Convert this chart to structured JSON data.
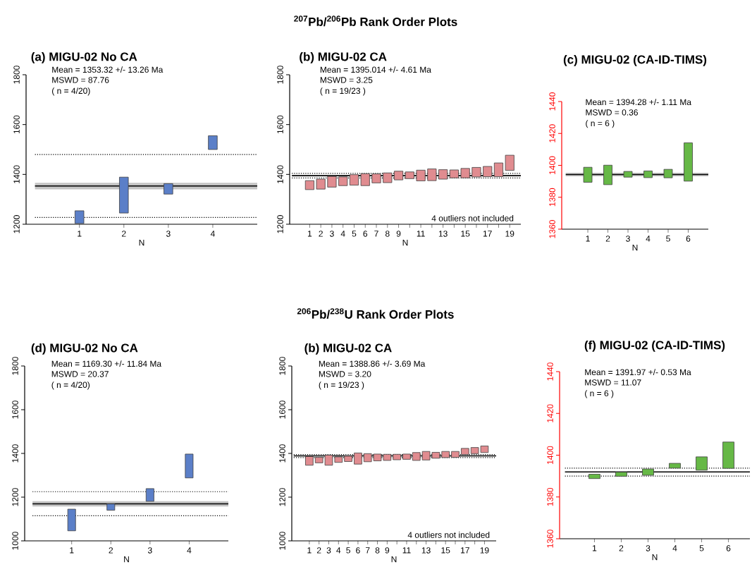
{
  "chart_data": [
    {
      "type": "bar",
      "title": "(a)  MIGU-02 No CA",
      "xlabel": "N",
      "annotations": [
        "Mean = 1353.32 +/- 13.26 Ma",
        "MSWD = 87.76",
        "( n = 4/20)"
      ],
      "x": [
        1,
        2,
        3,
        4
      ],
      "xlim": [
        -0.2,
        5
      ],
      "xticks": [
        1,
        2,
        3,
        4
      ],
      "ylim": [
        1200,
        1800
      ],
      "yticks": [
        1200,
        1400,
        1600,
        1800
      ],
      "base": [
        1203,
        1245,
        1321,
        1500
      ],
      "values": [
        51,
        144,
        42,
        55
      ],
      "color": "#5b7fc8",
      "bands": [
        {
          "axis": "y",
          "from": 1340.06,
          "to": 1366.58,
          "color": "#c4c4c4"
        }
      ],
      "ref_lines": [
        {
          "axis": "y",
          "value": 1353.32,
          "line_style": "solid",
          "color": "#000000"
        },
        {
          "axis": "y",
          "value": 1480,
          "line_style": "dotted",
          "color": "#000000"
        },
        {
          "axis": "y",
          "value": 1227,
          "line_style": "dotted",
          "color": "#000000"
        }
      ]
    },
    {
      "type": "bar",
      "title": "(b)  MIGU-02 CA",
      "subtitle": "$^{207}$Pb/$^{206}$Pb Rank Order Plots",
      "xlabel": "N",
      "annotations": [
        "Mean = 1395.014 +/- 4.61 Ma",
        "MSWD = 3.25",
        "( n = 19/23 )",
        "4 outliers not included"
      ],
      "x": [
        1,
        2,
        3,
        4,
        5,
        6,
        7,
        8,
        9,
        10,
        11,
        12,
        13,
        14,
        15,
        16,
        17,
        18,
        19
      ],
      "xlim": [
        -0.8,
        20
      ],
      "xticks": [
        1,
        2,
        3,
        4,
        5,
        6,
        7,
        8,
        9,
        {
          "value": 10,
          "label": null
        },
        11,
        {
          "value": 12,
          "label": null
        },
        13,
        {
          "value": 14,
          "label": null
        },
        15,
        {
          "value": 16,
          "label": null
        },
        17,
        {
          "value": 18,
          "label": null
        },
        19
      ],
      "ylim": [
        1200,
        1800
      ],
      "yticks": [
        1200,
        1400,
        1600,
        1800
      ],
      "base": [
        1339,
        1341,
        1349,
        1355,
        1357,
        1355,
        1366,
        1367,
        1378,
        1383,
        1374,
        1375,
        1381,
        1386,
        1386,
        1390,
        1391,
        1391,
        1416
      ],
      "values": [
        36,
        40,
        43,
        35,
        42,
        48,
        36,
        39,
        35,
        27,
        43,
        47,
        38,
        32,
        38,
        38,
        41,
        55,
        61
      ],
      "color": "#e08c90",
      "ref_lines": [
        {
          "axis": "y",
          "value": 1395.014,
          "line_style": "solid",
          "color": "#000000"
        },
        {
          "axis": "y",
          "value": 1404,
          "line_style": "dotted",
          "color": "#000000"
        },
        {
          "axis": "y",
          "value": 1386,
          "line_style": "dotted",
          "color": "#000000"
        }
      ]
    },
    {
      "type": "bar",
      "title": "(c) MIGU-02 (CA-ID-TIMS)",
      "xlabel": "N",
      "annotations": [
        "Mean = 1394.28 +/- 1.11 Ma",
        "MSWD = 0.36",
        "( n = 6 )"
      ],
      "x": [
        1,
        2,
        3,
        4,
        5,
        6
      ],
      "xlim": [
        -0.3,
        7
      ],
      "xticks": [
        1,
        2,
        3,
        4,
        5,
        6
      ],
      "ylim": [
        1360,
        1440
      ],
      "yticks": [
        1360,
        1380,
        1400,
        1420,
        1440
      ],
      "base": [
        1389.4,
        1387.9,
        1392.6,
        1392.3,
        1392.2,
        1390.1
      ],
      "values": [
        9.4,
        12.2,
        3.6,
        4.2,
        5.3,
        24.0
      ],
      "color": "#66b846",
      "bands": [
        {
          "axis": "y",
          "from": 1393.17,
          "to": 1395.39,
          "color": "#c4c4c4"
        }
      ],
      "ref_lines": [
        {
          "axis": "y",
          "value": 1394.28,
          "line_style": "solid",
          "color": "#000000"
        }
      ]
    },
    {
      "type": "bar",
      "title": "(d)  MIGU-02 No CA",
      "xlabel": "N",
      "annotations": [
        "Mean = 1169.30 +/- 11.84 Ma",
        "MSWD = 20.37",
        "( n = 4/20)"
      ],
      "x": [
        1,
        2,
        3,
        4
      ],
      "xlim": [
        -0.2,
        5
      ],
      "xticks": [
        1,
        2,
        3,
        4
      ],
      "ylim": [
        1000,
        1800
      ],
      "yticks": [
        1000,
        1200,
        1400,
        1600,
        1800
      ],
      "base": [
        1046,
        1140,
        1181,
        1288
      ],
      "values": [
        99,
        29,
        58,
        109
      ],
      "color": "#5b7fc8",
      "bands": [
        {
          "axis": "y",
          "from": 1157.46,
          "to": 1181.14,
          "color": "#c4c4c4"
        }
      ],
      "ref_lines": [
        {
          "axis": "y",
          "value": 1169.3,
          "line_style": "solid",
          "color": "#000000"
        },
        {
          "axis": "y",
          "value": 1225,
          "line_style": "dotted",
          "color": "#000000"
        },
        {
          "axis": "y",
          "value": 1115,
          "line_style": "dotted",
          "color": "#000000"
        }
      ]
    },
    {
      "type": "bar",
      "title": "(b)  MIGU-02 CA",
      "subtitle": "$^{206}$Pb/$^{238}$U  Rank Order Plots",
      "xlabel": "N",
      "annotations": [
        "Mean = 1388.86 +/- 3.69 Ma",
        "MSWD = 3.20",
        "( n = 19/23 )",
        "4 outliers not included"
      ],
      "x": [
        1,
        2,
        3,
        4,
        5,
        6,
        7,
        8,
        9,
        10,
        11,
        12,
        13,
        14,
        15,
        16,
        17,
        18,
        19
      ],
      "xlim": [
        -0.8,
        20.2
      ],
      "xticks": [
        1,
        2,
        3,
        4,
        5,
        6,
        7,
        8,
        9,
        {
          "value": 10,
          "label": null
        },
        11,
        {
          "value": 12,
          "label": null
        },
        13,
        {
          "value": 14,
          "label": null
        },
        15,
        {
          "value": 16,
          "label": null
        },
        17,
        {
          "value": 18,
          "label": null
        },
        19
      ],
      "ylim": [
        1000,
        1800
      ],
      "yticks": [
        1000,
        1200,
        1400,
        1600,
        1800
      ],
      "base": [
        1346,
        1357,
        1346,
        1359,
        1363,
        1351,
        1362,
        1366,
        1368,
        1371,
        1373,
        1368,
        1370,
        1378,
        1381,
        1382,
        1395,
        1399,
        1404
      ],
      "values": [
        40,
        25,
        46,
        25,
        25,
        51,
        37,
        31,
        28,
        25,
        24,
        36,
        39,
        27,
        28,
        27,
        28,
        28,
        30
      ],
      "color": "#e08c90",
      "ref_lines": [
        {
          "axis": "y",
          "value": 1388.86,
          "line_style": "solid",
          "color": "#000000"
        },
        {
          "axis": "y",
          "value": 1395,
          "line_style": "dotted",
          "color": "#000000"
        },
        {
          "axis": "y",
          "value": 1381,
          "line_style": "dotted",
          "color": "#000000"
        }
      ]
    },
    {
      "type": "bar",
      "title": "(f)  MIGU-02 (CA-ID-TIMS)",
      "xlabel": "N",
      "annotations": [
        "Mean = 1391.97 +/- 0.53 Ma",
        "MSWD = 11.07",
        "( n = 6 )"
      ],
      "x": [
        1,
        2,
        3,
        4,
        5,
        6
      ],
      "xlim": [
        -0.3,
        6.8
      ],
      "xticks": [
        1,
        2,
        3,
        4,
        5,
        6
      ],
      "ylim": [
        1360,
        1440
      ],
      "yticks": [
        1360,
        1380,
        1400,
        1420,
        1440
      ],
      "base": [
        1388.8,
        1389.9,
        1390.4,
        1393.8,
        1392.8,
        1393.7
      ],
      "values": [
        2.1,
        2.0,
        3.0,
        2.3,
        6.4,
        12.6
      ],
      "color": "#66b846",
      "ref_lines": [
        {
          "axis": "y",
          "value": 1391.97,
          "line_style": "solid",
          "color": "#000000"
        },
        {
          "axis": "y",
          "value": 1393.8,
          "line_style": "dotted",
          "color": "#000000"
        },
        {
          "axis": "y",
          "value": 1390.0,
          "line_style": "dotted",
          "color": "#000000"
        }
      ]
    }
  ]
}
